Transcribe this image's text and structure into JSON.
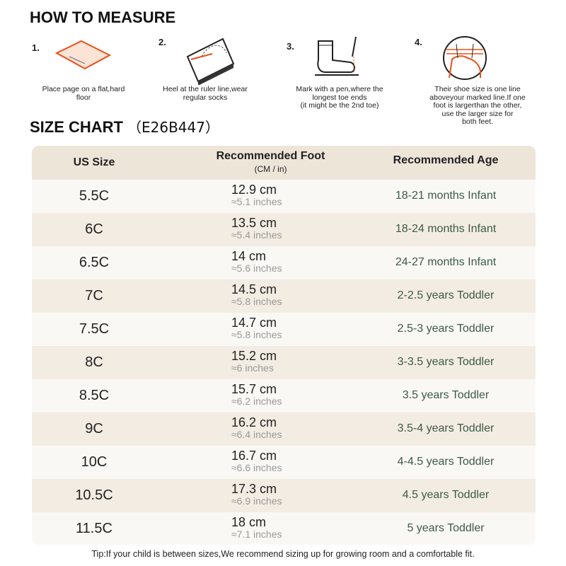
{
  "header": {
    "title": "HOW TO MEASURE"
  },
  "steps": [
    {
      "number": "1.",
      "lines": [
        "Place page on a flat,hard",
        "floor"
      ]
    },
    {
      "number": "2.",
      "lines": [
        "Heel at the ruler line,wear",
        "regular socks"
      ]
    },
    {
      "number": "3.",
      "lines": [
        "Mark with a pen,where the",
        "longest toe ends",
        "(it might be the 2nd toe)"
      ]
    },
    {
      "number": "4.",
      "lines": [
        "Their shoe size is one line",
        "aboveyour marked line.If one",
        "foot is largerthan the other,",
        "use the larger size for",
        "both feet."
      ]
    }
  ],
  "size_chart": {
    "title": "SIZE CHART",
    "code": "（E26B447）"
  },
  "table": {
    "headers": {
      "size": "US Size",
      "foot": "Recommended Foot",
      "foot_unit": "(CM / in)",
      "age": "Recommended Age"
    },
    "rows": [
      [
        "5.5C",
        "12.9 cm",
        "≈5.1 inches",
        "18-21 months Infant"
      ],
      [
        "6C",
        "13.5 cm",
        "≈5.4 inches",
        "18-24 months Infant"
      ],
      [
        "6.5C",
        "14 cm",
        "≈5.6 inches",
        "24-27 months Infant"
      ],
      [
        "7C",
        "14.5 cm",
        "≈5.8 inches",
        "2-2.5 years Toddler"
      ],
      [
        "7.5C",
        "14.7 cm",
        "≈5.8 inches",
        "2.5-3 years Toddler"
      ],
      [
        "8C",
        "15.2 cm",
        "≈6 inches",
        "3-3.5 years Toddler"
      ],
      [
        "8.5C",
        "15.7 cm",
        "≈6.2 inches",
        "3.5 years Toddler"
      ],
      [
        "9C",
        "16.2 cm",
        "≈6.4 inches",
        "3.5-4 years Toddler"
      ],
      [
        "10C",
        "16.7 cm",
        "≈6.6 inches",
        "4-4.5 years Toddler"
      ],
      [
        "10.5C",
        "17.3 cm",
        "≈6.9 inches",
        "4.5 years Toddler"
      ],
      [
        "11.5C",
        "18 cm",
        "≈7.1 inches",
        "5 years Toddler"
      ]
    ]
  },
  "tip": "Tip:If your child is between sizes,We recommend sizing up for growing room and a comfortable fit."
}
